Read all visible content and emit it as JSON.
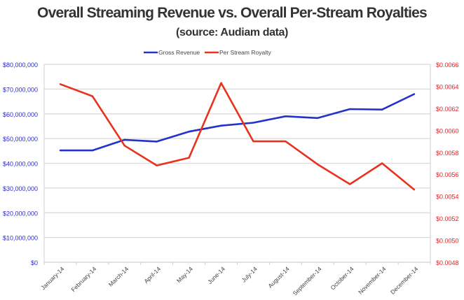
{
  "chart_data": {
    "type": "line",
    "title": "Overall Streaming Revenue vs. Overall Per-Stream Royalties",
    "subtitle": "(source: Audiam data)",
    "categories": [
      "January-14",
      "February-14",
      "March-14",
      "April-14",
      "May-14",
      "June-14",
      "July-14",
      "August-14",
      "September-14",
      "October-14",
      "November-14",
      "December-14"
    ],
    "series": [
      {
        "name": "Gross Revenue",
        "axis": "left",
        "color": "#2233cc",
        "values": [
          45200000,
          45200000,
          49500000,
          48800000,
          52800000,
          55200000,
          56400000,
          59000000,
          58300000,
          61900000,
          61700000,
          68000000
        ]
      },
      {
        "name": "Per Stream Royalty",
        "axis": "right",
        "color": "#e8321e",
        "values": [
          0.00642,
          0.00631,
          0.00586,
          0.00568,
          0.00575,
          0.00643,
          0.0059,
          0.0059,
          0.00569,
          0.00551,
          0.0057,
          0.00546
        ]
      }
    ],
    "y_left": {
      "range": [
        0,
        80000000
      ],
      "ticks": [
        "$0",
        "$10,000,000",
        "$20,000,000",
        "$30,000,000",
        "$40,000,000",
        "$50,000,000",
        "$60,000,000",
        "$70,000,000",
        "$80,000,000"
      ],
      "color": "#2a2ad0"
    },
    "y_right": {
      "range": [
        0.0048,
        0.0066
      ],
      "ticks": [
        "$0.0048",
        "$0.0050",
        "$0.0052",
        "$0.0054",
        "$0.0056",
        "$0.0058",
        "$0.0060",
        "$0.0062",
        "$0.0064",
        "$0.0066"
      ],
      "color": "#e0242a"
    },
    "grid": true,
    "legend": "top"
  }
}
